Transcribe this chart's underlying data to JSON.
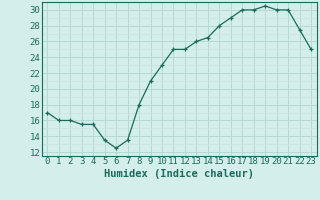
{
  "x": [
    0,
    1,
    2,
    3,
    4,
    5,
    6,
    7,
    8,
    9,
    10,
    11,
    12,
    13,
    14,
    15,
    16,
    17,
    18,
    19,
    20,
    21,
    22,
    23
  ],
  "y": [
    17,
    16,
    16,
    15.5,
    15.5,
    13.5,
    12.5,
    13.5,
    18,
    21,
    23,
    25,
    25,
    26,
    26.5,
    28,
    29,
    30,
    30,
    30.5,
    30,
    30,
    27.5,
    25
  ],
  "line_color": "#1a6b5a",
  "marker": "+",
  "bg_color": "#d4eeeb",
  "grid_major_color": "#b8d8d4",
  "grid_minor_color": "#c8e4e0",
  "xlabel": "Humidex (Indice chaleur)",
  "xlim": [
    -0.5,
    23.5
  ],
  "ylim": [
    11.5,
    31.0
  ],
  "yticks": [
    12,
    14,
    16,
    18,
    20,
    22,
    24,
    26,
    28,
    30
  ],
  "xticks": [
    0,
    1,
    2,
    3,
    4,
    5,
    6,
    7,
    8,
    9,
    10,
    11,
    12,
    13,
    14,
    15,
    16,
    17,
    18,
    19,
    20,
    21,
    22,
    23
  ],
  "tick_color": "#1a6b5a",
  "label_fontsize": 6.5,
  "axis_fontsize": 7.5
}
